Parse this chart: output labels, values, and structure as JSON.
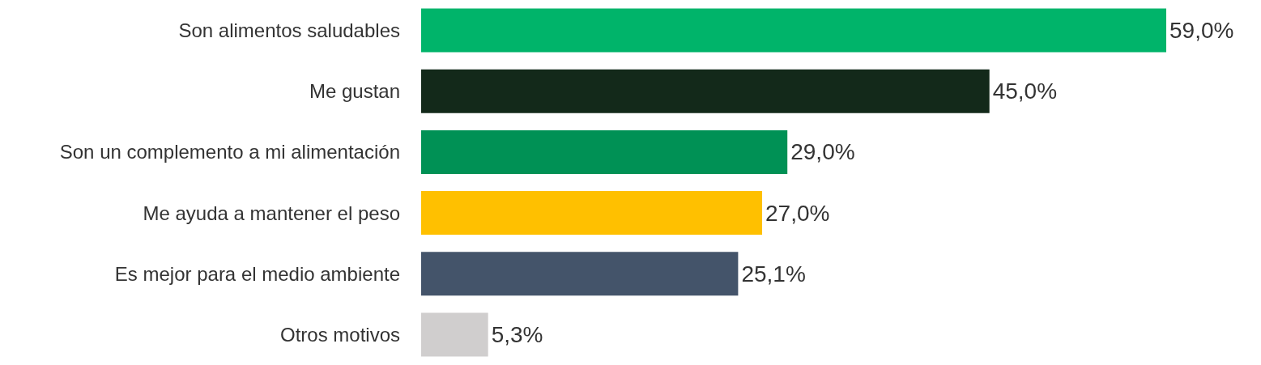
{
  "chart_data": {
    "type": "bar",
    "orientation": "horizontal",
    "categories": [
      "Son alimentos saludables",
      "Me gustan",
      "Son un complemento a mi alimentación",
      "Me ayuda a mantener el peso",
      "Es mejor para el medio ambiente",
      "Otros motivos"
    ],
    "values": [
      59.0,
      45.0,
      29.0,
      27.0,
      25.1,
      5.3
    ],
    "colors": [
      "#00b46a",
      "#13291a",
      "#009155",
      "#ffc000",
      "#44546a",
      "#d0cece"
    ],
    "value_labels": [
      "59,0%",
      "45,0%",
      "29,0%",
      "27,0%",
      "25,1%",
      "5,3%"
    ]
  }
}
